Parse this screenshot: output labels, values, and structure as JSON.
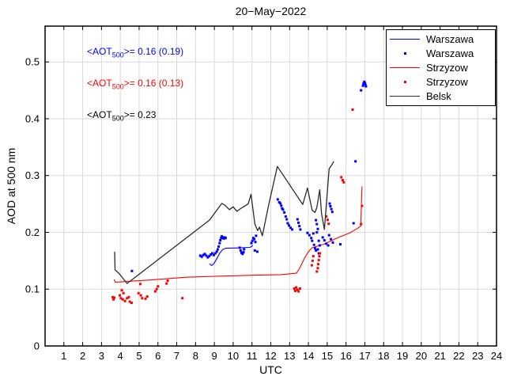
{
  "title": "20−May−2022",
  "annotations": [
    {
      "prefix": "<AOT",
      "sub": "500",
      "rest": ">= 0.16 (0.19)",
      "color": "#0000ff",
      "station": "Warszawa"
    },
    {
      "prefix": "<AOT",
      "sub": "500",
      "rest": ">= 0.16 (0.13)",
      "color": "#ff0000",
      "station": "Strzyzow"
    },
    {
      "prefix": "<AOT",
      "sub": "500",
      "rest": ">= 0.23",
      "color": "#000000",
      "station": "Belsk"
    }
  ],
  "legend": {
    "position": "top-right",
    "items": [
      {
        "label": "Warszawa",
        "type": "line",
        "color": "#0000ff"
      },
      {
        "label": "Warszawa",
        "type": "dot",
        "color": "#0000ff"
      },
      {
        "label": "Strzyzow",
        "type": "line",
        "color": "#ff0000"
      },
      {
        "label": "Strzyzow",
        "type": "dot",
        "color": "#ff0000"
      },
      {
        "label": "Belsk",
        "type": "line",
        "color": "#2b2b2b"
      }
    ]
  },
  "chart_data": {
    "type": "line+scatter",
    "title": "20−May−2022",
    "xlabel": "UTC",
    "ylabel": "AOD at 500 nm",
    "xlim": [
      0,
      24
    ],
    "ylim": [
      0,
      0.563
    ],
    "grid": true,
    "grid_color": "#d9d9d9",
    "xticks": [
      1,
      2,
      3,
      4,
      5,
      6,
      7,
      8,
      9,
      10,
      11,
      12,
      13,
      14,
      15,
      16,
      17,
      18,
      19,
      20,
      21,
      22,
      23,
      24
    ],
    "yticks": [
      0,
      0.1,
      0.2,
      0.3,
      0.4,
      0.5
    ],
    "ytick_labels": [
      "0",
      "0.1",
      "0.2",
      "0.3",
      "0.4",
      "0.5"
    ],
    "series": [
      {
        "name": "Warszawa",
        "type": "line",
        "color": "#0000ff",
        "width": 1.1,
        "points": [
          [
            8.74,
            0.145
          ],
          [
            8.85,
            0.1415
          ],
          [
            9.0,
            0.146
          ],
          [
            9.15,
            0.155
          ],
          [
            9.3,
            0.164
          ],
          [
            9.45,
            0.17
          ],
          [
            9.6,
            0.172
          ],
          [
            10.2,
            0.1725
          ],
          [
            10.9,
            0.1735
          ],
          [
            11.05,
            0.177
          ]
        ]
      },
      {
        "name": "Strzyzow",
        "type": "line",
        "color": "#ff0000",
        "width": 1.1,
        "points": [
          [
            3.67,
            0.117
          ],
          [
            3.74,
            0.112
          ],
          [
            4.3,
            0.1135
          ],
          [
            5.5,
            0.116
          ],
          [
            7.5,
            0.121
          ],
          [
            9.5,
            0.123
          ],
          [
            11.0,
            0.1245
          ],
          [
            12.53,
            0.1255
          ],
          [
            13.37,
            0.128
          ],
          [
            13.55,
            0.138
          ],
          [
            13.8,
            0.155
          ],
          [
            14.0,
            0.166
          ],
          [
            14.2,
            0.173
          ],
          [
            14.8,
            0.179
          ],
          [
            15.6,
            0.191
          ],
          [
            16.2,
            0.199
          ],
          [
            16.6,
            0.2066
          ],
          [
            16.78,
            0.211
          ],
          [
            16.85,
            0.281
          ]
        ]
      },
      {
        "name": "Warszawa",
        "type": "scatter",
        "color": "#0000ff",
        "points": [
          [
            4.62,
            0.132
          ],
          [
            8.25,
            0.159
          ],
          [
            8.33,
            0.157
          ],
          [
            8.41,
            0.16
          ],
          [
            8.49,
            0.162
          ],
          [
            8.57,
            0.159
          ],
          [
            8.65,
            0.156
          ],
          [
            8.73,
            0.158
          ],
          [
            8.81,
            0.161
          ],
          [
            8.89,
            0.163
          ],
          [
            8.97,
            0.16
          ],
          [
            9.05,
            0.163
          ],
          [
            9.13,
            0.166
          ],
          [
            9.18,
            0.17
          ],
          [
            9.23,
            0.175
          ],
          [
            9.28,
            0.181
          ],
          [
            9.32,
            0.186
          ],
          [
            9.36,
            0.19
          ],
          [
            9.4,
            0.193
          ],
          [
            9.45,
            0.191
          ],
          [
            9.5,
            0.189
          ],
          [
            9.55,
            0.191
          ],
          [
            9.6,
            0.19
          ],
          [
            10.35,
            0.173
          ],
          [
            10.4,
            0.168
          ],
          [
            10.44,
            0.164
          ],
          [
            10.5,
            0.162
          ],
          [
            10.55,
            0.165
          ],
          [
            10.58,
            0.17
          ],
          [
            10.97,
            0.181
          ],
          [
            11.02,
            0.185
          ],
          [
            11.07,
            0.19
          ],
          [
            11.12,
            0.188
          ],
          [
            11.18,
            0.183
          ],
          [
            11.22,
            0.194
          ],
          [
            11.15,
            0.168
          ],
          [
            11.28,
            0.166
          ],
          [
            12.37,
            0.258
          ],
          [
            12.45,
            0.253
          ],
          [
            12.51,
            0.251
          ],
          [
            12.56,
            0.247
          ],
          [
            12.6,
            0.242
          ],
          [
            12.65,
            0.24
          ],
          [
            12.72,
            0.235
          ],
          [
            12.79,
            0.228
          ],
          [
            12.85,
            0.223
          ],
          [
            12.9,
            0.216
          ],
          [
            12.97,
            0.212
          ],
          [
            13.05,
            0.208
          ],
          [
            13.14,
            0.205
          ],
          [
            13.42,
            0.223
          ],
          [
            13.47,
            0.217
          ],
          [
            13.52,
            0.211
          ],
          [
            13.57,
            0.205
          ],
          [
            13.95,
            0.199
          ],
          [
            14.05,
            0.195
          ],
          [
            14.15,
            0.19
          ],
          [
            14.26,
            0.198
          ],
          [
            14.2,
            0.185
          ],
          [
            14.3,
            0.178
          ],
          [
            14.35,
            0.172
          ],
          [
            14.4,
            0.168
          ],
          [
            14.4,
            0.2215
          ],
          [
            14.45,
            0.2145
          ],
          [
            14.45,
            0.2
          ],
          [
            14.5,
            0.206
          ],
          [
            14.5,
            0.17
          ],
          [
            14.55,
            0.185
          ],
          [
            14.55,
            0.163
          ],
          [
            14.6,
            0.177
          ],
          [
            14.76,
            0.191
          ],
          [
            14.85,
            0.186
          ],
          [
            14.95,
            0.18
          ],
          [
            15.05,
            0.177
          ],
          [
            15.1,
            0.195
          ],
          [
            15.13,
            0.2507
          ],
          [
            15.17,
            0.246
          ],
          [
            15.22,
            0.241
          ],
          [
            15.27,
            0.236
          ],
          [
            15.2,
            0.188
          ],
          [
            15.3,
            0.182
          ],
          [
            15.7,
            0.179
          ],
          [
            16.4,
            0.216
          ],
          [
            16.5,
            0.325
          ],
          [
            16.8,
            0.45
          ],
          [
            16.9,
            0.458
          ],
          [
            16.93,
            0.462
          ],
          [
            16.97,
            0.465
          ],
          [
            17.0,
            0.463
          ],
          [
            17.03,
            0.46
          ],
          [
            17.06,
            0.457
          ]
        ]
      },
      {
        "name": "Strzyzow",
        "type": "scatter",
        "color": "#ff0000",
        "points": [
          [
            3.6,
            0.086
          ],
          [
            3.64,
            0.082
          ],
          [
            3.68,
            0.085
          ],
          [
            3.97,
            0.089
          ],
          [
            4.03,
            0.084
          ],
          [
            4.08,
            0.098
          ],
          [
            4.13,
            0.082
          ],
          [
            4.17,
            0.093
          ],
          [
            4.25,
            0.079
          ],
          [
            4.36,
            0.084
          ],
          [
            4.45,
            0.086
          ],
          [
            4.5,
            0.078
          ],
          [
            4.6,
            0.076
          ],
          [
            4.97,
            0.093
          ],
          [
            5.06,
            0.109
          ],
          [
            5.09,
            0.089
          ],
          [
            5.16,
            0.084
          ],
          [
            5.34,
            0.083
          ],
          [
            5.43,
            0.087
          ],
          [
            5.86,
            0.096
          ],
          [
            5.93,
            0.1
          ],
          [
            6.0,
            0.105
          ],
          [
            6.46,
            0.11
          ],
          [
            6.52,
            0.115
          ],
          [
            7.3,
            0.084
          ],
          [
            13.25,
            0.101
          ],
          [
            13.3,
            0.097
          ],
          [
            13.35,
            0.103
          ],
          [
            13.42,
            0.099
          ],
          [
            13.48,
            0.096
          ],
          [
            13.55,
            0.101
          ],
          [
            14.18,
            0.142
          ],
          [
            14.22,
            0.15
          ],
          [
            14.26,
            0.158
          ],
          [
            14.45,
            0.131
          ],
          [
            14.5,
            0.137
          ],
          [
            14.52,
            0.144
          ],
          [
            14.55,
            0.151
          ],
          [
            14.58,
            0.158
          ],
          [
            14.62,
            0.163
          ],
          [
            14.95,
            0.228
          ],
          [
            15.02,
            0.222
          ],
          [
            15.08,
            0.215
          ],
          [
            15.75,
            0.297
          ],
          [
            15.82,
            0.292
          ],
          [
            15.88,
            0.288
          ],
          [
            16.35,
            0.416
          ],
          [
            16.8,
            0.2145
          ],
          [
            16.85,
            0.2465
          ]
        ]
      },
      {
        "name": "Belsk",
        "type": "line",
        "color": "#2b2b2b",
        "width": 1.3,
        "points": [
          [
            3.7,
            0.166
          ],
          [
            3.72,
            0.134
          ],
          [
            3.95,
            0.127
          ],
          [
            4.36,
            0.11
          ],
          [
            8.74,
            0.2215
          ],
          [
            9.4,
            0.251
          ],
          [
            9.55,
            0.248
          ],
          [
            9.8,
            0.24
          ],
          [
            10.0,
            0.245
          ],
          [
            10.2,
            0.237
          ],
          [
            10.5,
            0.244
          ],
          [
            10.8,
            0.25
          ],
          [
            10.95,
            0.267
          ],
          [
            11.15,
            0.215
          ],
          [
            11.3,
            0.203
          ],
          [
            11.4,
            0.209
          ],
          [
            11.55,
            0.194
          ],
          [
            11.9,
            0.25
          ],
          [
            12.35,
            0.316
          ],
          [
            13.7,
            0.249
          ],
          [
            13.95,
            0.278
          ],
          [
            14.2,
            0.239
          ],
          [
            14.35,
            0.235
          ],
          [
            14.45,
            0.244
          ],
          [
            14.6,
            0.275
          ],
          [
            14.7,
            0.233
          ],
          [
            14.85,
            0.205
          ],
          [
            15.1,
            0.312
          ],
          [
            15.25,
            0.319
          ],
          [
            15.35,
            0.325
          ]
        ]
      }
    ]
  }
}
